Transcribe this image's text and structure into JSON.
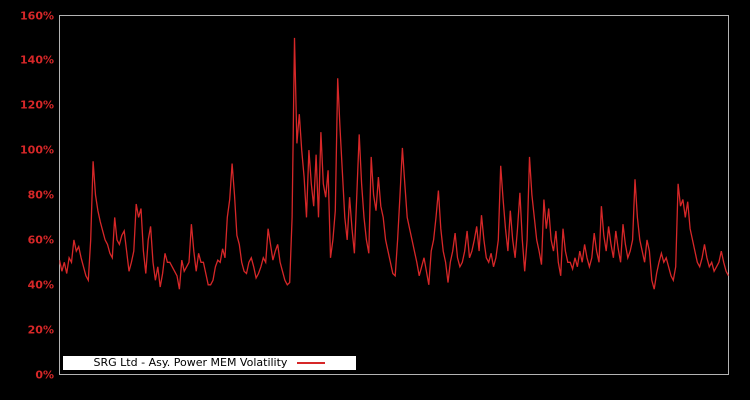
{
  "chart_data": {
    "type": "line",
    "title": "",
    "xlabel": "",
    "ylabel": "",
    "ylim": [
      0,
      160
    ],
    "yticks": [
      0,
      20,
      40,
      60,
      80,
      100,
      120,
      140,
      160
    ],
    "ytick_labels": [
      "0%",
      "20%",
      "40%",
      "60%",
      "80%",
      "100%",
      "120%",
      "140%",
      "160%"
    ],
    "xtick_labels": [],
    "grid": false,
    "legend_position": "bottom-left-inside",
    "colors": {
      "background": "#000000",
      "axis_border": "#b3b3b3",
      "tick_label": "#d62728",
      "line": "#d62728",
      "legend_background": "#ffffff",
      "legend_text": "#000000"
    },
    "series": [
      {
        "name": "SRG Ltd - Asy. Power MEM Volatility",
        "unit": "percent",
        "values": [
          51,
          46,
          50,
          45,
          52,
          50,
          60,
          55,
          57,
          52,
          48,
          44,
          42,
          60,
          95,
          80,
          73,
          68,
          64,
          60,
          58,
          54,
          52,
          70,
          60,
          58,
          62,
          64,
          55,
          46,
          50,
          55,
          76,
          70,
          74,
          55,
          45,
          60,
          66,
          50,
          42,
          48,
          39,
          45,
          54,
          50,
          50,
          48,
          46,
          44,
          38,
          51,
          46,
          48,
          50,
          67,
          55,
          46,
          54,
          50,
          50,
          45,
          40,
          40,
          42,
          48,
          51,
          50,
          56,
          52,
          70,
          78,
          94,
          80,
          62,
          58,
          50,
          46,
          45,
          50,
          52,
          48,
          43,
          45,
          48,
          52,
          50,
          65,
          58,
          51,
          55,
          58,
          50,
          46,
          42,
          40,
          41,
          70,
          150,
          103,
          116,
          100,
          88,
          70,
          100,
          85,
          75,
          98,
          70,
          108,
          85,
          79,
          91,
          52,
          60,
          73,
          132,
          110,
          90,
          70,
          60,
          79,
          65,
          54,
          80,
          107,
          85,
          70,
          60,
          54,
          97,
          80,
          73,
          88,
          75,
          70,
          60,
          55,
          50,
          45,
          44,
          60,
          80,
          101,
          85,
          70,
          65,
          60,
          55,
          50,
          44,
          48,
          52,
          46,
          40,
          55,
          60,
          70,
          82,
          65,
          55,
          50,
          41,
          50,
          55,
          63,
          52,
          48,
          50,
          55,
          64,
          52,
          55,
          60,
          66,
          55,
          71,
          60,
          52,
          50,
          54,
          48,
          52,
          60,
          93,
          78,
          65,
          55,
          73,
          60,
          52,
          65,
          81,
          60,
          46,
          60,
          97,
          80,
          70,
          60,
          55,
          49,
          78,
          65,
          74,
          60,
          55,
          64,
          50,
          44,
          65,
          55,
          50,
          50,
          47,
          52,
          48,
          55,
          50,
          58,
          52,
          48,
          52,
          63,
          55,
          50,
          75,
          62,
          55,
          66,
          58,
          52,
          64,
          56,
          50,
          67,
          58,
          52,
          55,
          60,
          87,
          70,
          60,
          55,
          50,
          60,
          55,
          42,
          38,
          45,
          50,
          54,
          50,
          52,
          48,
          44,
          42,
          48,
          85,
          75,
          78,
          70,
          77,
          65,
          60,
          55,
          50,
          48,
          52,
          58,
          52,
          48,
          50,
          46,
          48,
          50,
          55,
          50,
          46,
          44
        ]
      }
    ]
  },
  "legend": {
    "label": "SRG Ltd - Asy. Power MEM Volatility"
  }
}
